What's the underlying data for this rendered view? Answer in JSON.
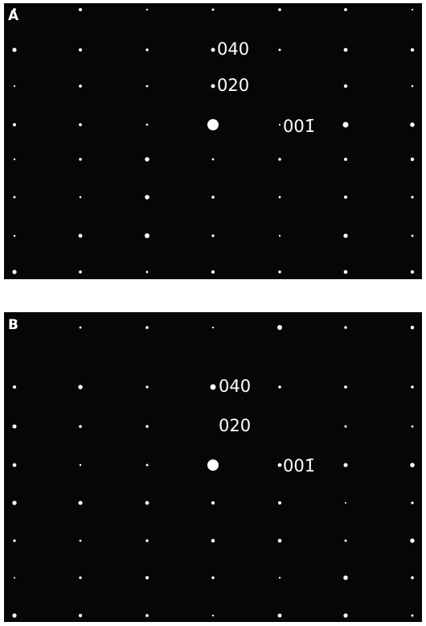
{
  "panels": [
    {
      "label": "A",
      "annotations": [
        "040",
        "020",
        "001̄"
      ]
    },
    {
      "label": "B",
      "annotations": [
        "040",
        "020",
        "001̄"
      ]
    }
  ]
}
